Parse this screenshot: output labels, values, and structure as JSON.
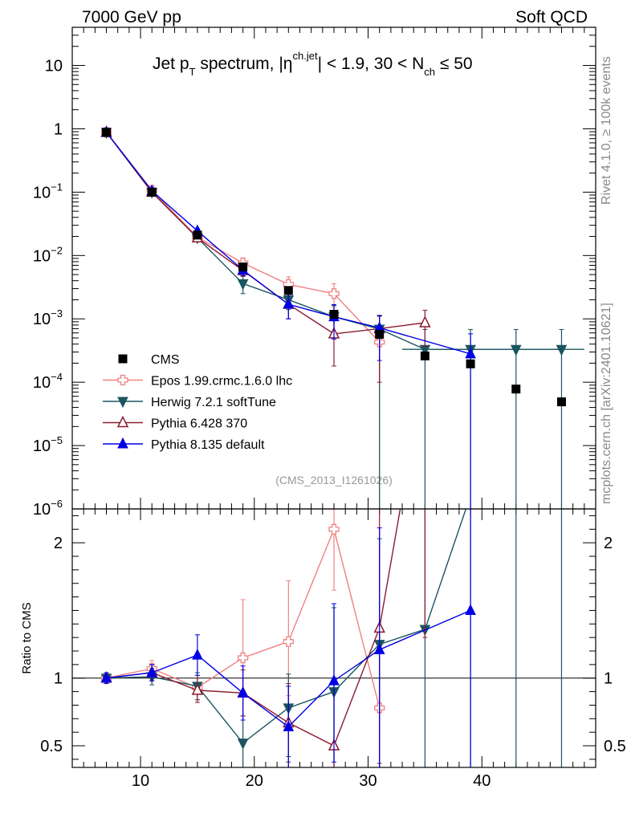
{
  "header": {
    "left": "7000 GeV pp",
    "right": "Soft QCD"
  },
  "side_labels": {
    "rivet": "Rivet 4.1.0, ≥ 100k events",
    "mcplots": "mcplots.cern.ch [arXiv:2401.10621]"
  },
  "analysis_tag": "(CMS_2013_I1261026)",
  "chart_data": {
    "type": "scatter",
    "title_parts": {
      "main": "Jet p",
      "pt_sub": "T",
      "spectrum": " spectrum, |η",
      "eta_sup": "ch.jet",
      "cuts": "| < 1.9, 30 < N",
      "nch_sub": "ch",
      "upper": " ≤ 50"
    },
    "xlabel": "",
    "ylabel": "",
    "ratio_ylabel": "Ratio to CMS",
    "xlim": [
      4,
      50
    ],
    "ylim": [
      1e-06,
      40
    ],
    "ratio_ylim": [
      0.34,
      2.25
    ],
    "x_ticks": [
      10,
      20,
      30,
      40
    ],
    "x_tick_labels": [
      "10",
      "20",
      "30",
      "40"
    ],
    "y_ticks": [
      {
        "v": 10,
        "base": "10",
        "exp": ""
      },
      {
        "v": 1,
        "base": "1",
        "exp": ""
      },
      {
        "v": 0.1,
        "base": "10",
        "exp": "−1"
      },
      {
        "v": 0.01,
        "base": "10",
        "exp": "−2"
      },
      {
        "v": 0.001,
        "base": "10",
        "exp": "−3"
      },
      {
        "v": 0.0001,
        "base": "10",
        "exp": "−4"
      },
      {
        "v": 1e-05,
        "base": "10",
        "exp": "−5"
      },
      {
        "v": 1e-06,
        "base": "10",
        "exp": "−6"
      }
    ],
    "ratio_ticks": [
      {
        "v": 2,
        "label": "2"
      },
      {
        "v": 1,
        "label": "1"
      },
      {
        "v": 0.5,
        "label": "0.5"
      }
    ],
    "data": {
      "name": "CMS",
      "color": "#000000",
      "x": [
        7,
        11,
        15,
        19,
        23,
        27,
        31,
        35,
        39,
        43,
        47
      ],
      "y": [
        0.88,
        0.1,
        0.021,
        0.0066,
        0.0028,
        0.00118,
        0.00057,
        0.00026,
        0.000195,
        7.8e-05,
        4.9e-05
      ]
    },
    "series": [
      {
        "name": "Epos 1.99.crmc.1.6.0 lhc",
        "color": "#f08080",
        "marker": "cross-open",
        "x": [
          7,
          11,
          15,
          19,
          23,
          27,
          31
        ],
        "y": [
          0.88,
          0.107,
          0.0195,
          0.0076,
          0.0035,
          0.0025,
          0.00043
        ],
        "yerr_lo": [
          0.05,
          0.01,
          0.002,
          0.0016,
          0.0009,
          0.00095,
          0.00043
        ],
        "yerr_hi": [
          0.05,
          0.01,
          0.002,
          0.0016,
          0.0011,
          0.0011,
          0.0002
        ],
        "ratio": [
          1.0,
          1.07,
          0.93,
          1.15,
          1.27,
          2.1,
          0.78
        ],
        "ratio_err_lo": [
          0.04,
          0.06,
          0.09,
          0.43,
          0.4,
          0.45,
          0.78
        ],
        "ratio_err_hi": [
          0.04,
          0.06,
          0.09,
          0.43,
          0.45,
          0.45,
          0.6
        ]
      },
      {
        "name": "Herwig 7.2.1 softTune",
        "color": "#1a5560",
        "marker": "triangle-down",
        "x": [
          7,
          11,
          15,
          19,
          23,
          27,
          31,
          35,
          39,
          43,
          47
        ],
        "y": [
          0.88,
          0.1,
          0.019,
          0.0036,
          0.002,
          0.00108,
          0.00069,
          0.00033,
          0.00033,
          0.00033,
          0.00033
        ],
        "yerr_lo": [
          0.05,
          0.01,
          0.002,
          0.0011,
          0.0006,
          0.00055,
          0.00069,
          0.00033,
          0.00033,
          0.00033,
          0.00033
        ],
        "yerr_hi": [
          0.05,
          0.01,
          0.002,
          0.0011,
          0.0006,
          0.00055,
          0.00045,
          0.00035,
          0.00035,
          0.00035,
          0.00035
        ],
        "ratio": [
          1.0,
          1.01,
          0.94,
          0.52,
          0.78,
          0.9,
          1.25,
          1.36,
          2.35,
          4.2,
          6.7
        ],
        "ratio_err_lo": [
          0.04,
          0.06,
          0.1,
          0.52,
          0.36,
          0.9,
          1.25,
          1.36,
          2.35,
          4.2,
          6.7
        ],
        "ratio_err_hi": [
          0.04,
          0.06,
          0.1,
          0.2,
          0.25,
          0.62,
          0.78,
          1.5,
          2.5,
          4.5,
          7.0
        ]
      },
      {
        "name": "Pythia 6.428 370",
        "color": "#8b1a2e",
        "marker": "triangle-up-open",
        "x": [
          7,
          11,
          15,
          19,
          23,
          27,
          31,
          35
        ],
        "y": [
          0.88,
          0.1,
          0.019,
          0.0058,
          0.0017,
          0.00058,
          0.0007,
          0.00087
        ],
        "yerr_lo": [
          0.05,
          0.01,
          0.002,
          0.0011,
          0.0007,
          0.0004,
          0.0006,
          0.0005
        ],
        "yerr_hi": [
          0.05,
          0.01,
          0.002,
          0.0011,
          0.0008,
          0.0005,
          0.0004,
          0.0005
        ],
        "ratio": [
          1.0,
          1.04,
          0.91,
          0.89,
          0.67,
          0.5,
          1.37,
          3.3
        ],
        "ratio_err_lo": [
          0.04,
          0.06,
          0.09,
          0.17,
          0.29,
          0.5,
          1.0,
          2.0
        ],
        "ratio_err_hi": [
          0.04,
          0.06,
          0.09,
          0.17,
          0.29,
          0.5,
          1.0,
          2.0
        ]
      },
      {
        "name": "Pythia 8.135 default",
        "color": "#0000e6",
        "marker": "triangle-up",
        "x": [
          7,
          11,
          15,
          19,
          23,
          27,
          31,
          39
        ],
        "y": [
          0.88,
          0.105,
          0.0245,
          0.0059,
          0.0017,
          0.00108,
          0.00072,
          0.00028
        ],
        "yerr_lo": [
          0.05,
          0.01,
          0.002,
          0.0011,
          0.0007,
          0.0006,
          0.0005,
          0.00028
        ],
        "yerr_hi": [
          0.05,
          0.01,
          0.002,
          0.0011,
          0.0008,
          0.0006,
          0.0004,
          0.0003
        ],
        "ratio": [
          1.0,
          1.04,
          1.17,
          0.89,
          0.64,
          0.98,
          1.21,
          1.5
        ],
        "ratio_err_lo": [
          0.04,
          0.06,
          0.15,
          0.2,
          0.3,
          0.6,
          0.9,
          1.5
        ],
        "ratio_err_hi": [
          0.04,
          0.06,
          0.15,
          0.2,
          0.3,
          0.57,
          0.9,
          1.5
        ]
      }
    ],
    "legend_position": "lower-left"
  }
}
